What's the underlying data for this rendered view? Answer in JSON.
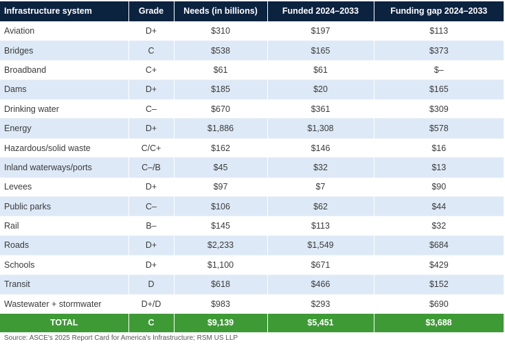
{
  "table": {
    "headers": [
      "Infrastructure system",
      "Grade",
      "Needs (in billions)",
      "Funded 2024–2033",
      "Funding gap 2024–2033"
    ],
    "rows": [
      [
        "Aviation",
        "D+",
        "$310",
        "$197",
        "$113"
      ],
      [
        "Bridges",
        "C",
        "$538",
        "$165",
        "$373"
      ],
      [
        "Broadband",
        "C+",
        "$61",
        "$61",
        "$–"
      ],
      [
        "Dams",
        "D+",
        "$185",
        "$20",
        "$165"
      ],
      [
        "Drinking water",
        "C–",
        "$670",
        "$361",
        "$309"
      ],
      [
        "Energy",
        "D+",
        "$1,886",
        "$1,308",
        "$578"
      ],
      [
        "Hazardous/solid waste",
        "C/C+",
        "$162",
        "$146",
        "$16"
      ],
      [
        "Inland waterways/ports",
        "C–/B",
        "$45",
        "$32",
        "$13"
      ],
      [
        "Levees",
        "D+",
        "$97",
        "$7",
        "$90"
      ],
      [
        "Public parks",
        "C–",
        "$106",
        "$62",
        "$44"
      ],
      [
        "Rail",
        "B–",
        "$145",
        "$113",
        "$32"
      ],
      [
        "Roads",
        "D+",
        "$2,233",
        "$1,549",
        "$684"
      ],
      [
        "Schools",
        "D+",
        "$1,100",
        "$671",
        "$429"
      ],
      [
        "Transit",
        "D",
        "$618",
        "$466",
        "$152"
      ],
      [
        "Wastewater + stormwater",
        "D+/D",
        "$983",
        "$293",
        "$690"
      ]
    ],
    "total": [
      "TOTAL",
      "C",
      "$9,139",
      "$5,451",
      "$3,688"
    ]
  },
  "source": "Source: ASCE's 2025 Report Card for America's Infrastructure; RSM US LLP",
  "colors": {
    "header_bg": "#0c2340",
    "stripe_bg": "#dde9f6",
    "total_bg": "#3e9a35"
  }
}
